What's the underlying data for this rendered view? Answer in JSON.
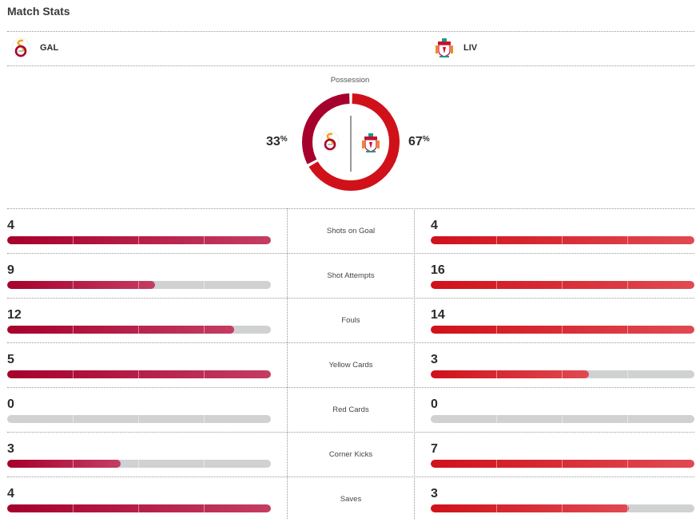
{
  "header": {
    "title": "Match Stats"
  },
  "teams": {
    "home": {
      "abbr": "GAL",
      "logo": "galatasaray-crest-icon",
      "color": "#a6002c"
    },
    "away": {
      "abbr": "LIV",
      "logo": "liverpool-crest-icon",
      "color": "#d0111a"
    }
  },
  "possession": {
    "label": "Possession",
    "home_pct": 33,
    "away_pct": 67,
    "home_text": "33",
    "away_text": "67",
    "pct_sign": "%"
  },
  "stats": [
    {
      "label": "Shots on Goal",
      "home": "4",
      "away": "4",
      "home_fill": 1.0,
      "away_fill": 1.0
    },
    {
      "label": "Shot Attempts",
      "home": "9",
      "away": "16",
      "home_fill": 0.56,
      "away_fill": 1.0
    },
    {
      "label": "Fouls",
      "home": "12",
      "away": "14",
      "home_fill": 0.86,
      "away_fill": 1.0
    },
    {
      "label": "Yellow Cards",
      "home": "5",
      "away": "3",
      "home_fill": 1.0,
      "away_fill": 0.6
    },
    {
      "label": "Red Cards",
      "home": "0",
      "away": "0",
      "home_fill": 0,
      "away_fill": 0
    },
    {
      "label": "Corner Kicks",
      "home": "3",
      "away": "7",
      "home_fill": 0.43,
      "away_fill": 1.0
    },
    {
      "label": "Saves",
      "home": "4",
      "away": "3",
      "home_fill": 1.0,
      "away_fill": 0.75
    }
  ]
}
